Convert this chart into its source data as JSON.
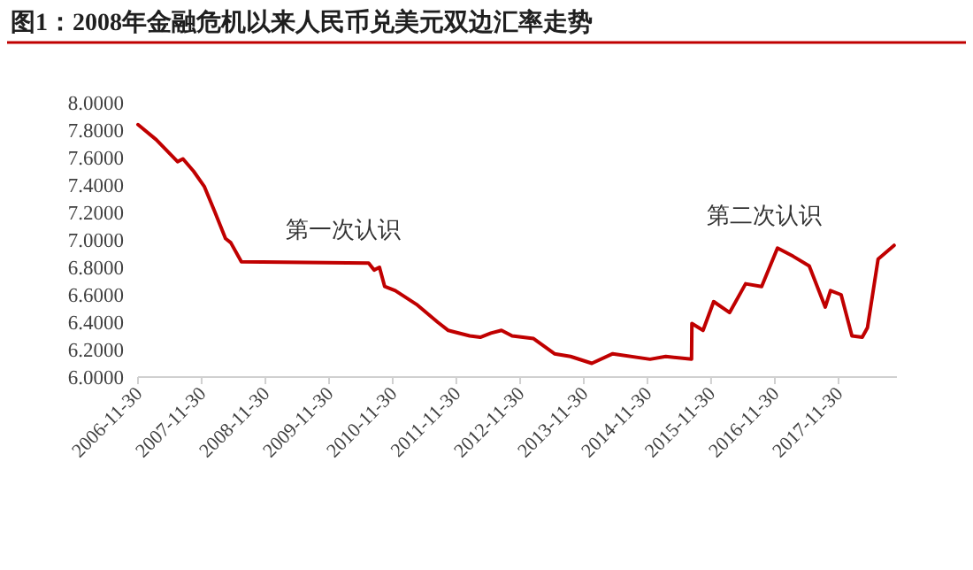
{
  "chart_data": {
    "type": "line",
    "title": "图1：2008年金融危机以来人民币兑美元双边汇率走势",
    "x": [
      "2006-11-30",
      "2007-03",
      "2007-07",
      "2007-08",
      "2007-10",
      "2007-12",
      "2008-02",
      "2008-04",
      "2008-05",
      "2008-07",
      "2010-07",
      "2010-08",
      "2010-09",
      "2010-10",
      "2010-12",
      "2011-04",
      "2011-08",
      "2011-10",
      "2012-02",
      "2012-04",
      "2012-06",
      "2012-08",
      "2012-10",
      "2013-02",
      "2013-06",
      "2013-09",
      "2014-01",
      "2014-05",
      "2014-12",
      "2015-03",
      "2015-08-10",
      "2015-08-12",
      "2015-10",
      "2015-12",
      "2016-03",
      "2016-06",
      "2016-09",
      "2016-12",
      "2017-03",
      "2017-06",
      "2017-09",
      "2017-10",
      "2017-12",
      "2018-02",
      "2018-04",
      "2018-05",
      "2018-07",
      "2018-10"
    ],
    "series": [
      {
        "color": "#c00000",
        "values": [
          7.84,
          7.73,
          7.57,
          7.59,
          7.5,
          7.39,
          7.2,
          7.01,
          6.98,
          6.84,
          6.83,
          6.78,
          6.8,
          6.66,
          6.63,
          6.53,
          6.4,
          6.34,
          6.3,
          6.29,
          6.32,
          6.34,
          6.3,
          6.28,
          6.17,
          6.15,
          6.1,
          6.17,
          6.13,
          6.15,
          6.13,
          6.39,
          6.34,
          6.55,
          6.47,
          6.68,
          6.66,
          6.94,
          6.88,
          6.81,
          6.51,
          6.63,
          6.6,
          6.3,
          6.29,
          6.36,
          6.86,
          6.96
        ]
      }
    ],
    "annotations": [
      "第一次认识",
      "第二次认识"
    ],
    "xlim": [
      "2006-11-30",
      "2018-10-31"
    ],
    "xticks": [
      {
        "value": "2006-11-30",
        "label": "2006-11-30"
      },
      {
        "value": "2007-11-30",
        "label": "2007-11-30"
      },
      {
        "value": "2008-11-30",
        "label": "2008-11-30"
      },
      {
        "value": "2009-11-30",
        "label": "2009-11-30"
      },
      {
        "value": "2010-11-30",
        "label": "2010-11-30"
      },
      {
        "value": "2011-11-30",
        "label": "2011-11-30"
      },
      {
        "value": "2012-11-30",
        "label": "2012-11-30"
      },
      {
        "value": "2013-11-30",
        "label": "2013-11-30"
      },
      {
        "value": "2014-11-30",
        "label": "2014-11-30"
      },
      {
        "value": "2015-11-30",
        "label": "2015-11-30"
      },
      {
        "value": "2016-11-30",
        "label": "2016-11-30"
      },
      {
        "value": "2017-11-30",
        "label": "2017-11-30"
      }
    ],
    "ylim": [
      6,
      8
    ],
    "yticks": [
      {
        "value": 6,
        "label": "6.0000"
      },
      {
        "value": 6.2,
        "label": "6.2000"
      },
      {
        "value": 6.4,
        "label": "6.4000"
      },
      {
        "value": 6.6,
        "label": "6.6000"
      },
      {
        "value": 6.8,
        "label": "6.8000"
      },
      {
        "value": 7,
        "label": "7.0000"
      },
      {
        "value": 7.2,
        "label": "7.2000"
      },
      {
        "value": 7.4,
        "label": "7.4000"
      },
      {
        "value": 7.6,
        "label": "7.6000"
      },
      {
        "value": 7.8,
        "label": "7.8000"
      },
      {
        "value": 8,
        "label": "8.0000"
      }
    ],
    "grid": false,
    "line_style": "solid",
    "marker": "none"
  }
}
